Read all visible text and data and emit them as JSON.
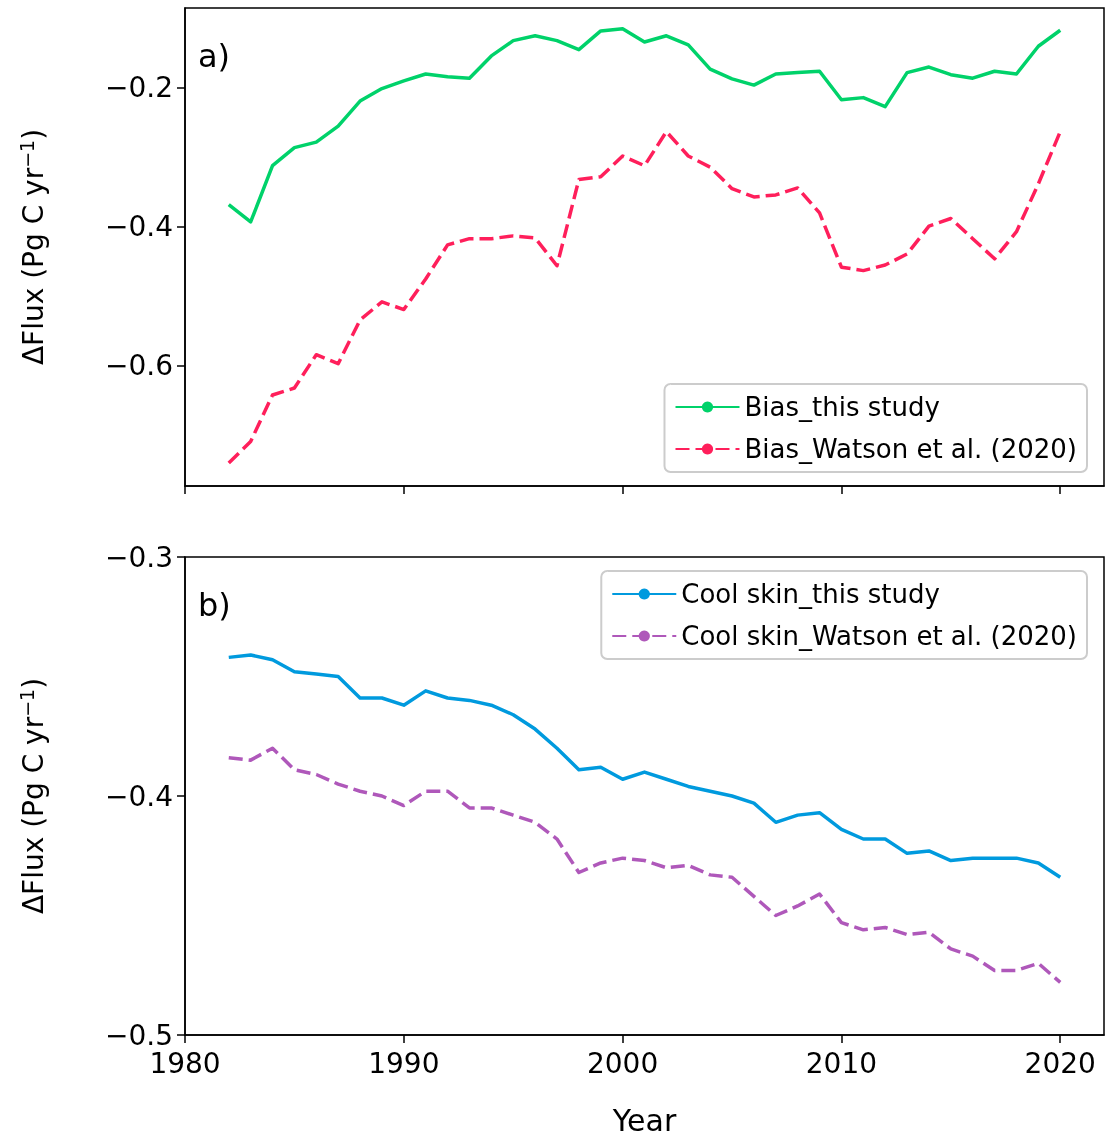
{
  "chart_data": [
    {
      "type": "line",
      "ylabel": "ΔFlux (Pg C yr$^{−1}$)",
      "annotations": [
        "a)"
      ],
      "x": [
        1982,
        1983,
        1984,
        1985,
        1986,
        1987,
        1988,
        1989,
        1990,
        1991,
        1992,
        1993,
        1994,
        1995,
        1996,
        1997,
        1998,
        1999,
        2000,
        2001,
        2002,
        2003,
        2004,
        2005,
        2006,
        2007,
        2008,
        2009,
        2010,
        2011,
        2012,
        2013,
        2014,
        2015,
        2016,
        2017,
        2018,
        2019,
        2020
      ],
      "series": [
        {
          "name": "Bias_this study",
          "color": "#00d26a",
          "line_style": "solid",
          "values": [
            -0.368,
            -0.393,
            -0.312,
            -0.286,
            -0.278,
            -0.255,
            -0.219,
            -0.201,
            -0.19,
            -0.18,
            -0.184,
            -0.186,
            -0.154,
            -0.132,
            -0.125,
            -0.132,
            -0.145,
            -0.118,
            -0.115,
            -0.134,
            -0.125,
            -0.138,
            -0.173,
            -0.187,
            -0.196,
            -0.18,
            -0.178,
            -0.176,
            -0.217,
            -0.214,
            -0.227,
            -0.178,
            -0.17,
            -0.181,
            -0.186,
            -0.176,
            -0.18,
            -0.14,
            -0.117
          ]
        },
        {
          "name": "Bias_Watson et al. (2020)",
          "color": "#ff1f5b",
          "line_style": "dashed",
          "values": [
            -0.74,
            -0.709,
            -0.642,
            -0.632,
            -0.584,
            -0.597,
            -0.534,
            -0.508,
            -0.519,
            -0.475,
            -0.426,
            -0.417,
            -0.417,
            -0.413,
            -0.416,
            -0.456,
            -0.332,
            -0.328,
            -0.298,
            -0.312,
            -0.263,
            -0.298,
            -0.314,
            -0.345,
            -0.357,
            -0.354,
            -0.344,
            -0.38,
            -0.458,
            -0.463,
            -0.455,
            -0.439,
            -0.399,
            -0.388,
            -0.417,
            -0.446,
            -0.407,
            -0.338,
            -0.263
          ]
        }
      ],
      "xlim": [
        1980,
        2022
      ],
      "xticks": [
        1980,
        1990,
        2000,
        2010,
        2020
      ],
      "ylim": [
        -0.773,
        -0.085
      ],
      "yticks": [
        {
          "value": -0.6,
          "label": "−0.6"
        },
        {
          "value": -0.4,
          "label": "−0.4"
        },
        {
          "value": -0.2,
          "label": "−0.2"
        }
      ],
      "tick_labels": "y",
      "legend": "bottom right",
      "grid": false,
      "marker": "none"
    },
    {
      "type": "line",
      "xlabel": "Year",
      "ylabel": "ΔFlux (Pg C yr$^{−1}$)",
      "annotations": [
        "b)"
      ],
      "x": [
        1982,
        1983,
        1984,
        1985,
        1986,
        1987,
        1988,
        1989,
        1990,
        1991,
        1992,
        1993,
        1994,
        1995,
        1996,
        1997,
        1998,
        1999,
        2000,
        2001,
        2002,
        2003,
        2004,
        2005,
        2006,
        2007,
        2008,
        2009,
        2010,
        2011,
        2012,
        2013,
        2014,
        2015,
        2016,
        2017,
        2018,
        2019,
        2020
      ],
      "series": [
        {
          "name": "Cool skin_this study",
          "color": "#009ade",
          "line_style": "solid",
          "values": [
            -0.342,
            -0.341,
            -0.343,
            -0.348,
            -0.349,
            -0.35,
            -0.359,
            -0.359,
            -0.362,
            -0.356,
            -0.359,
            -0.36,
            -0.362,
            -0.366,
            -0.372,
            -0.38,
            -0.389,
            -0.388,
            -0.393,
            -0.39,
            -0.393,
            -0.396,
            -0.398,
            -0.4,
            -0.403,
            -0.411,
            -0.408,
            -0.407,
            -0.414,
            -0.418,
            -0.418,
            -0.424,
            -0.423,
            -0.427,
            -0.426,
            -0.426,
            -0.426,
            -0.428,
            -0.434
          ]
        },
        {
          "name": "Cool skin_Watson et al. (2020)",
          "color": "#af58ba",
          "line_style": "dashed",
          "values": [
            -0.384,
            -0.385,
            -0.38,
            -0.389,
            -0.391,
            -0.395,
            -0.398,
            -0.4,
            -0.404,
            -0.398,
            -0.398,
            -0.405,
            -0.405,
            -0.408,
            -0.411,
            -0.418,
            -0.432,
            -0.428,
            -0.426,
            -0.427,
            -0.43,
            -0.429,
            -0.433,
            -0.434,
            -0.442,
            -0.45,
            -0.446,
            -0.441,
            -0.453,
            -0.456,
            -0.455,
            -0.458,
            -0.457,
            -0.464,
            -0.467,
            -0.473,
            -0.473,
            -0.47,
            -0.478
          ]
        }
      ],
      "xlim": [
        1980,
        2022
      ],
      "xticks": [
        1980,
        1990,
        2000,
        2010,
        2020
      ],
      "ylim": [
        -0.5,
        -0.3
      ],
      "yticks": [
        {
          "value": -0.5,
          "label": "−0.5"
        },
        {
          "value": -0.4,
          "label": "−0.4"
        },
        {
          "value": -0.3,
          "label": "−0.3"
        }
      ],
      "legend": "top right",
      "grid": false,
      "marker": "none"
    }
  ]
}
